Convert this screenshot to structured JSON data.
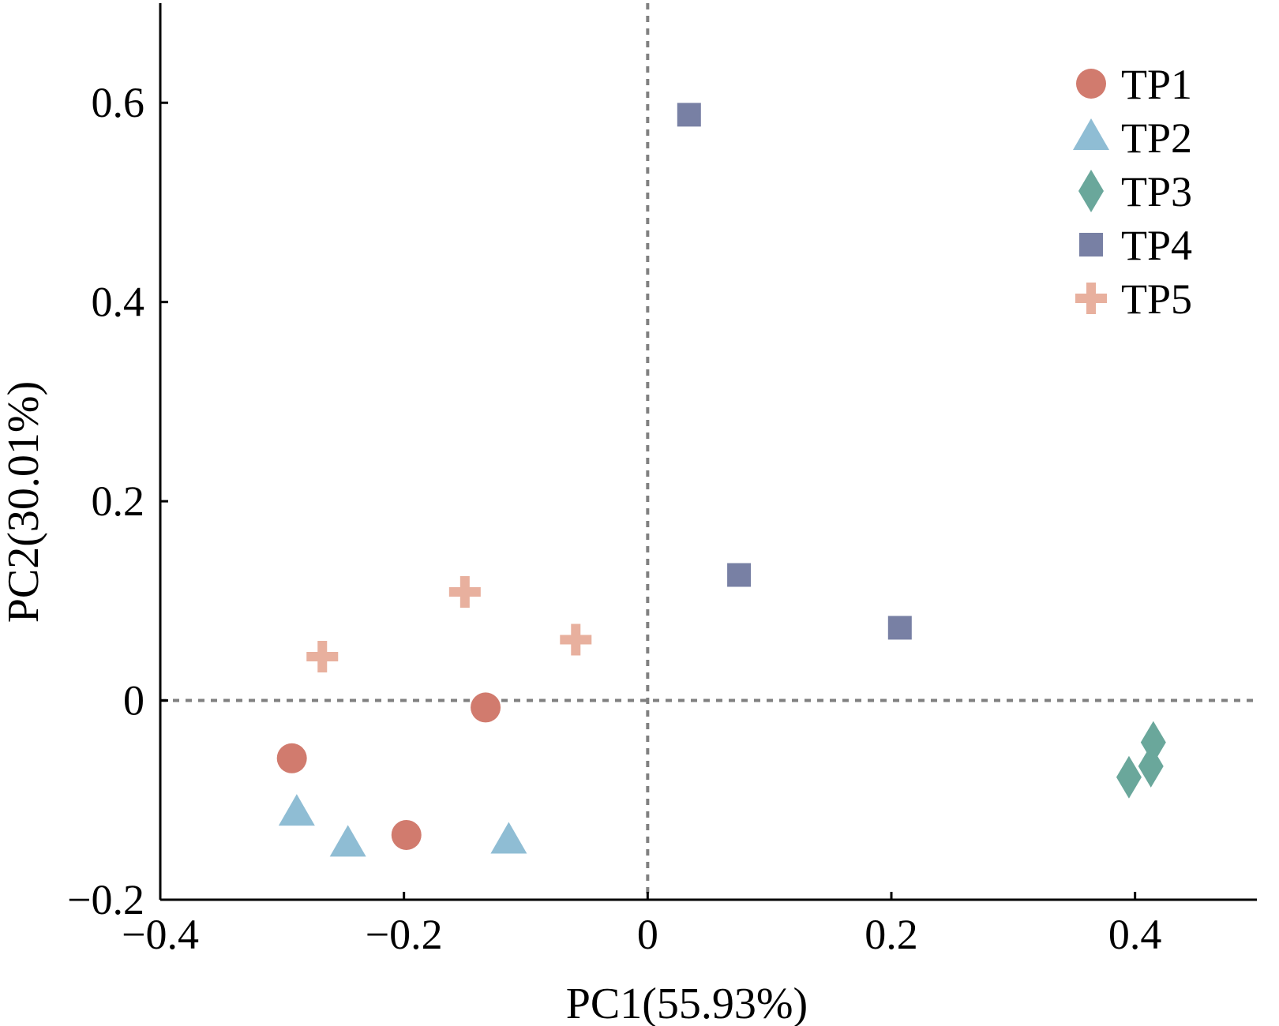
{
  "chart_data": {
    "type": "scatter",
    "xlabel": "PC1(55.93%)",
    "ylabel": "PC2(30.01%)",
    "xlim": [
      -0.4,
      0.5
    ],
    "ylim": [
      -0.2,
      0.7
    ],
    "x_ticks": [
      {
        "value": -0.4,
        "label": "−0.4"
      },
      {
        "value": -0.2,
        "label": "−0.2"
      },
      {
        "value": 0,
        "label": "0"
      },
      {
        "value": 0.2,
        "label": "0.2"
      },
      {
        "value": 0.4,
        "label": "0.4"
      }
    ],
    "y_ticks": [
      {
        "value": -0.2,
        "label": "−0.2"
      },
      {
        "value": 0,
        "label": "0"
      },
      {
        "value": 0.2,
        "label": "0.2"
      },
      {
        "value": 0.4,
        "label": "0.4"
      },
      {
        "value": 0.6,
        "label": "0.6"
      }
    ],
    "reference_lines": {
      "x": 0,
      "y": 0,
      "style": "dashed"
    },
    "grid": false,
    "legend_position": "top-right",
    "series": [
      {
        "name": "TP1",
        "marker": "circle",
        "color": "#d17b6e",
        "points": [
          [
            -0.292,
            -0.058
          ],
          [
            -0.133,
            -0.007
          ],
          [
            -0.198,
            -0.135
          ]
        ]
      },
      {
        "name": "TP2",
        "marker": "triangle",
        "color": "#8fbdd4",
        "points": [
          [
            -0.288,
            -0.113
          ],
          [
            -0.246,
            -0.144
          ],
          [
            -0.114,
            -0.141
          ]
        ]
      },
      {
        "name": "TP3",
        "marker": "diamond",
        "color": "#6aa79b",
        "points": [
          [
            0.415,
            -0.042
          ],
          [
            0.413,
            -0.066
          ],
          [
            0.395,
            -0.077
          ]
        ]
      },
      {
        "name": "TP4",
        "marker": "square",
        "color": "#7880a4",
        "points": [
          [
            0.034,
            0.588
          ],
          [
            0.075,
            0.126
          ],
          [
            0.207,
            0.073
          ]
        ]
      },
      {
        "name": "TP5",
        "marker": "plus",
        "color": "#e8b09e",
        "points": [
          [
            -0.267,
            0.044
          ],
          [
            -0.15,
            0.109
          ],
          [
            -0.059,
            0.061
          ]
        ]
      }
    ]
  }
}
